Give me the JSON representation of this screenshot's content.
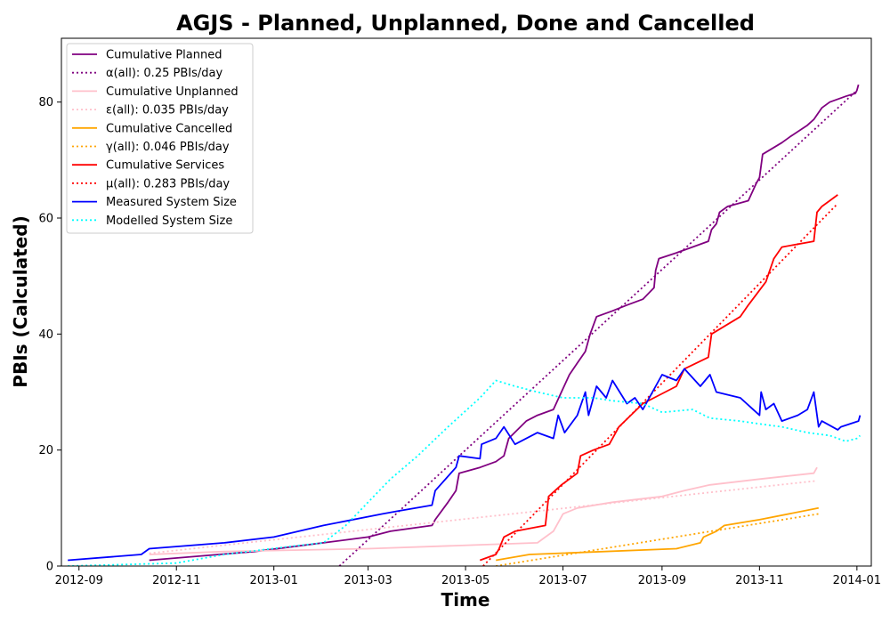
{
  "chart_data": {
    "type": "line",
    "title": "AGJS - Planned, Unplanned, Done  and Cancelled",
    "xlabel": "Time",
    "ylabel": "PBIs (Calculated)",
    "xlim": [
      "2012-08-21",
      "2014-01-10"
    ],
    "ylim": [
      0,
      91
    ],
    "x_ticks": [
      "2012-09",
      "2012-11",
      "2013-01",
      "2013-03",
      "2013-05",
      "2013-07",
      "2013-09",
      "2013-11",
      "2014-01"
    ],
    "y_ticks": [
      0,
      20,
      40,
      60,
      80
    ],
    "legend_position": "top-left",
    "series": [
      {
        "name": "Cumulative Planned",
        "color": "#800080",
        "style": "solid",
        "points": [
          [
            "2012-10-15",
            1
          ],
          [
            "2012-12-20",
            2.5
          ],
          [
            "2013-02-01",
            4
          ],
          [
            "2013-03-01",
            5
          ],
          [
            "2013-03-15",
            6
          ],
          [
            "2013-04-10",
            7
          ],
          [
            "2013-04-12",
            8
          ],
          [
            "2013-04-20",
            11
          ],
          [
            "2013-04-25",
            13
          ],
          [
            "2013-04-27",
            16
          ],
          [
            "2013-05-10",
            17
          ],
          [
            "2013-05-20",
            18
          ],
          [
            "2013-05-25",
            19
          ],
          [
            "2013-05-28",
            22
          ],
          [
            "2013-06-08",
            25
          ],
          [
            "2013-06-15",
            26
          ],
          [
            "2013-06-25",
            27
          ],
          [
            "2013-06-30",
            30
          ],
          [
            "2013-07-05",
            33
          ],
          [
            "2013-07-10",
            35
          ],
          [
            "2013-07-15",
            37
          ],
          [
            "2013-07-18",
            40
          ],
          [
            "2013-07-22",
            43
          ],
          [
            "2013-08-01",
            44
          ],
          [
            "2013-08-10",
            45
          ],
          [
            "2013-08-20",
            46
          ],
          [
            "2013-08-27",
            48
          ],
          [
            "2013-08-28",
            51
          ],
          [
            "2013-08-30",
            53
          ],
          [
            "2013-09-10",
            54
          ],
          [
            "2013-09-20",
            55
          ],
          [
            "2013-09-30",
            56
          ],
          [
            "2013-10-02",
            58
          ],
          [
            "2013-10-05",
            59
          ],
          [
            "2013-10-07",
            61
          ],
          [
            "2013-10-12",
            62
          ],
          [
            "2013-10-25",
            63
          ],
          [
            "2013-10-30",
            66
          ],
          [
            "2013-11-01",
            67
          ],
          [
            "2013-11-03",
            71
          ],
          [
            "2013-11-15",
            73
          ],
          [
            "2013-11-20",
            74
          ],
          [
            "2013-12-01",
            76
          ],
          [
            "2013-12-05",
            77
          ],
          [
            "2013-12-10",
            79
          ],
          [
            "2013-12-15",
            80
          ],
          [
            "2013-12-25",
            81
          ],
          [
            "2013-12-31",
            81.5
          ],
          [
            "2014-01-01",
            82
          ],
          [
            "2014-01-02",
            83
          ]
        ]
      },
      {
        "name": "α(all): 0.25 PBIs/day",
        "color": "#800080",
        "style": "dotted",
        "points": [
          [
            "2013-02-11",
            0
          ],
          [
            "2014-01-01",
            82
          ]
        ]
      },
      {
        "name": "Cumulative Unplanned",
        "color": "#ffc0cb",
        "style": "solid",
        "points": [
          [
            "2012-10-15",
            2
          ],
          [
            "2012-12-01",
            2.5
          ],
          [
            "2013-03-01",
            3
          ],
          [
            "2013-06-15",
            4
          ],
          [
            "2013-06-20",
            5
          ],
          [
            "2013-06-25",
            6
          ],
          [
            "2013-07-01",
            9
          ],
          [
            "2013-07-10",
            10
          ],
          [
            "2013-08-01",
            11
          ],
          [
            "2013-09-01",
            12
          ],
          [
            "2013-09-15",
            13
          ],
          [
            "2013-10-01",
            14
          ],
          [
            "2013-11-01",
            15
          ],
          [
            "2013-12-05",
            16
          ],
          [
            "2013-12-07",
            17
          ]
        ]
      },
      {
        "name": "ε(all): 0.035 PBIs/day",
        "color": "#ffc0cb",
        "style": "dotted",
        "points": [
          [
            "2012-10-15",
            2.2
          ],
          [
            "2013-12-07",
            14.7
          ]
        ]
      },
      {
        "name": "Cumulative Cancelled",
        "color": "#ffa500",
        "style": "solid",
        "points": [
          [
            "2013-05-20",
            1
          ],
          [
            "2013-06-10",
            2
          ],
          [
            "2013-09-10",
            3
          ],
          [
            "2013-09-25",
            4
          ],
          [
            "2013-09-27",
            5
          ],
          [
            "2013-10-05",
            6
          ],
          [
            "2013-10-10",
            7
          ],
          [
            "2013-11-01",
            8
          ],
          [
            "2013-12-08",
            10
          ]
        ]
      },
      {
        "name": "γ(all): 0.046 PBIs/day",
        "color": "#ffa500",
        "style": "dotted",
        "points": [
          [
            "2013-05-20",
            0
          ],
          [
            "2013-12-08",
            9
          ]
        ]
      },
      {
        "name": "Cumulative Services",
        "color": "#ff0000",
        "style": "solid",
        "points": [
          [
            "2013-05-10",
            1
          ],
          [
            "2013-05-20",
            2
          ],
          [
            "2013-05-22",
            3
          ],
          [
            "2013-05-25",
            5
          ],
          [
            "2013-06-01",
            6
          ],
          [
            "2013-06-20",
            7
          ],
          [
            "2013-06-22",
            12
          ],
          [
            "2013-06-30",
            14
          ],
          [
            "2013-07-10",
            16
          ],
          [
            "2013-07-12",
            19
          ],
          [
            "2013-07-20",
            20
          ],
          [
            "2013-07-30",
            21
          ],
          [
            "2013-08-05",
            24
          ],
          [
            "2013-08-20",
            28
          ],
          [
            "2013-09-10",
            31
          ],
          [
            "2013-09-15",
            34
          ],
          [
            "2013-09-30",
            36
          ],
          [
            "2013-10-02",
            40
          ],
          [
            "2013-10-20",
            43
          ],
          [
            "2013-10-25",
            45
          ],
          [
            "2013-11-05",
            49
          ],
          [
            "2013-11-10",
            53
          ],
          [
            "2013-11-15",
            55
          ],
          [
            "2013-12-05",
            56
          ],
          [
            "2013-12-07",
            61
          ],
          [
            "2013-12-10",
            62
          ],
          [
            "2013-12-15",
            63
          ],
          [
            "2013-12-20",
            64
          ]
        ]
      },
      {
        "name": "μ(all): 0.283 PBIs/day",
        "color": "#ff0000",
        "style": "dotted",
        "points": [
          [
            "2013-05-12",
            0
          ],
          [
            "2013-12-20",
            62.5
          ]
        ]
      },
      {
        "name": "Measured System Size",
        "color": "#0000ff",
        "style": "solid",
        "points": [
          [
            "2012-08-25",
            1
          ],
          [
            "2012-10-10",
            2
          ],
          [
            "2012-10-15",
            3
          ],
          [
            "2012-12-01",
            4
          ],
          [
            "2013-01-01",
            5
          ],
          [
            "2013-02-01",
            7
          ],
          [
            "2013-03-10",
            9
          ],
          [
            "2013-03-20",
            9.5
          ],
          [
            "2013-04-10",
            10.5
          ],
          [
            "2013-04-12",
            13
          ],
          [
            "2013-04-25",
            17
          ],
          [
            "2013-04-27",
            19
          ],
          [
            "2013-05-10",
            18.5
          ],
          [
            "2013-05-11",
            21
          ],
          [
            "2013-05-20",
            22
          ],
          [
            "2013-05-25",
            24
          ],
          [
            "2013-06-01",
            21
          ],
          [
            "2013-06-15",
            23
          ],
          [
            "2013-06-25",
            22
          ],
          [
            "2013-06-28",
            26
          ],
          [
            "2013-07-02",
            23
          ],
          [
            "2013-07-10",
            26
          ],
          [
            "2013-07-15",
            30
          ],
          [
            "2013-07-17",
            26
          ],
          [
            "2013-07-22",
            31
          ],
          [
            "2013-07-28",
            29
          ],
          [
            "2013-08-01",
            32
          ],
          [
            "2013-08-10",
            28
          ],
          [
            "2013-08-15",
            29
          ],
          [
            "2013-08-20",
            27
          ],
          [
            "2013-08-28",
            31
          ],
          [
            "2013-09-01",
            33
          ],
          [
            "2013-09-10",
            32
          ],
          [
            "2013-09-15",
            34
          ],
          [
            "2013-09-25",
            31
          ],
          [
            "2013-10-01",
            33
          ],
          [
            "2013-10-05",
            30
          ],
          [
            "2013-10-20",
            29
          ],
          [
            "2013-10-28",
            27
          ],
          [
            "2013-11-01",
            26
          ],
          [
            "2013-11-02",
            30
          ],
          [
            "2013-11-05",
            27
          ],
          [
            "2013-11-10",
            28
          ],
          [
            "2013-11-15",
            25
          ],
          [
            "2013-11-25",
            26
          ],
          [
            "2013-12-01",
            27
          ],
          [
            "2013-12-05",
            30
          ],
          [
            "2013-12-08",
            24
          ],
          [
            "2013-12-10",
            25
          ],
          [
            "2013-12-20",
            23.5
          ],
          [
            "2013-12-22",
            24
          ],
          [
            "2014-01-02",
            25
          ],
          [
            "2014-01-03",
            26
          ]
        ]
      },
      {
        "name": "Modelled System Size",
        "color": "#00ffff",
        "style": "dotted",
        "points": [
          [
            "2012-08-25",
            0
          ],
          [
            "2012-11-01",
            0.5
          ],
          [
            "2012-12-01",
            2
          ],
          [
            "2013-01-15",
            3.5
          ],
          [
            "2013-02-01",
            4
          ],
          [
            "2013-02-15",
            7
          ],
          [
            "2013-03-01",
            11
          ],
          [
            "2013-03-15",
            15
          ],
          [
            "2013-04-01",
            19
          ],
          [
            "2013-04-20",
            24
          ],
          [
            "2013-05-10",
            29
          ],
          [
            "2013-05-20",
            32
          ],
          [
            "2013-06-01",
            31
          ],
          [
            "2013-06-15",
            30
          ],
          [
            "2013-07-01",
            29
          ],
          [
            "2013-07-20",
            29
          ],
          [
            "2013-08-01",
            28.5
          ],
          [
            "2013-08-20",
            28
          ],
          [
            "2013-09-01",
            26.5
          ],
          [
            "2013-09-20",
            27
          ],
          [
            "2013-10-01",
            25.5
          ],
          [
            "2013-10-20",
            25
          ],
          [
            "2013-11-01",
            24.5
          ],
          [
            "2013-11-15",
            24
          ],
          [
            "2013-12-01",
            23
          ],
          [
            "2013-12-15",
            22.5
          ],
          [
            "2013-12-25",
            21.5
          ],
          [
            "2014-01-01",
            22
          ],
          [
            "2014-01-03",
            22.5
          ]
        ]
      }
    ]
  }
}
